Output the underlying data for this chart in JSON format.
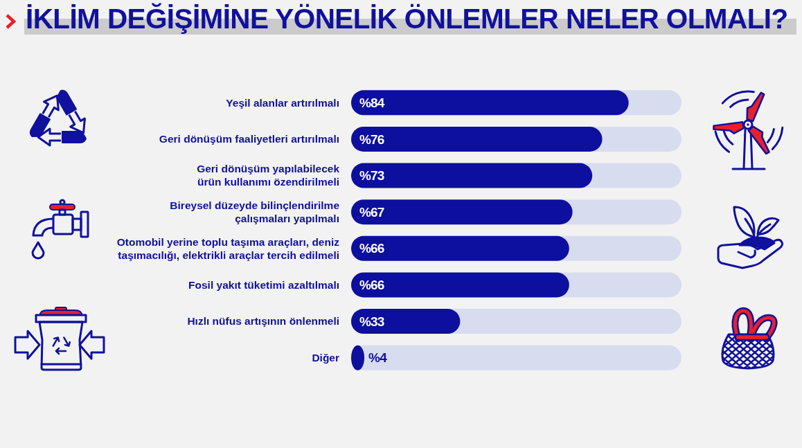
{
  "chart_data": {
    "type": "bar",
    "orientation": "horizontal",
    "title": "İKLİM DEĞİŞİMİNE YÖNELİK ÖNLEMLER NELER OLMALI?",
    "categories": [
      "Yeşil alanlar artırılmalı",
      "Geri dönüşüm faaliyetleri artırılmalı",
      "Geri dönüşüm yapılabilecek\nürün kullanımı özendirilmeli",
      "Bireysel düzeyde bilinçlendirilme\nçalışmaları yapılmalı",
      "Otomobil yerine toplu taşıma araçları, deniz\ntaşımacılığı, elektrikli araçlar tercih edilmeli",
      "Fosil yakıt tüketimi azaltılmalı",
      "Hızlı nüfus artışının önlenmeli",
      "Diğer"
    ],
    "values": [
      84,
      76,
      73,
      67,
      66,
      66,
      33,
      4
    ],
    "value_labels": [
      "%84",
      "%76",
      "%73",
      "%67",
      "%66",
      "%66",
      "%33",
      "%4"
    ],
    "color": "#0d0f9e",
    "xlim": [
      0,
      100
    ],
    "tick_labels": "y"
  }
}
